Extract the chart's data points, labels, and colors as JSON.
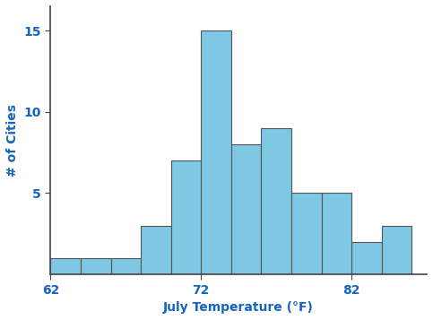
{
  "bin_edges": [
    62,
    64,
    66,
    68,
    70,
    72,
    74,
    76,
    78,
    80,
    82,
    84,
    86
  ],
  "counts": [
    1,
    1,
    1,
    3,
    7,
    15,
    8,
    9,
    5,
    5,
    2,
    3
  ],
  "bar_color": "#7EC8E3",
  "bar_edge_color": "#555555",
  "bar_linewidth": 0.8,
  "xlabel": "July Temperature (°F)",
  "ylabel": "# of Cities",
  "xticks": [
    62,
    72,
    82
  ],
  "yticks": [
    5,
    10,
    15
  ],
  "ylim": [
    0,
    16.5
  ],
  "xlim": [
    62,
    87
  ],
  "xlabel_color": "#1565C0",
  "ylabel_color": "#1565C0",
  "tick_color": "#1565C0",
  "xlabel_fontsize": 10,
  "ylabel_fontsize": 10,
  "tick_fontsize": 10,
  "background_color": "#ffffff",
  "spine_color": "#444444"
}
